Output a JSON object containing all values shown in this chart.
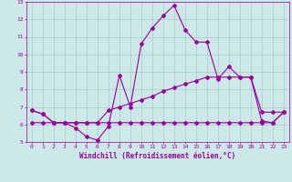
{
  "xlabel": "Windchill (Refroidissement éolien,°C)",
  "ylabel": "",
  "background_color": "#cce8e8",
  "line_color": "#990099",
  "grid_color": "#aacccc",
  "xlim": [
    -0.5,
    23.5
  ],
  "ylim": [
    5,
    13
  ],
  "xticks": [
    0,
    1,
    2,
    3,
    4,
    5,
    6,
    7,
    8,
    9,
    10,
    11,
    12,
    13,
    14,
    15,
    16,
    17,
    18,
    19,
    20,
    21,
    22,
    23
  ],
  "yticks": [
    5,
    6,
    7,
    8,
    9,
    10,
    11,
    12,
    13
  ],
  "line1_x": [
    0,
    1,
    2,
    3,
    4,
    5,
    6,
    7,
    8,
    9,
    10,
    11,
    12,
    13,
    14,
    15,
    16,
    17,
    18,
    19,
    20,
    21,
    22,
    23
  ],
  "line1_y": [
    6.8,
    6.6,
    6.1,
    6.1,
    5.8,
    5.3,
    5.1,
    5.9,
    8.8,
    7.0,
    10.6,
    11.5,
    12.2,
    12.8,
    11.4,
    10.7,
    10.7,
    8.6,
    9.3,
    8.7,
    8.7,
    6.2,
    6.1,
    6.7
  ],
  "line2_x": [
    0,
    1,
    2,
    3,
    4,
    5,
    6,
    7,
    8,
    9,
    10,
    11,
    12,
    13,
    14,
    15,
    16,
    17,
    18,
    19,
    20,
    21,
    22,
    23
  ],
  "line2_y": [
    6.8,
    6.6,
    6.1,
    6.1,
    6.1,
    6.1,
    6.1,
    6.8,
    7.0,
    7.2,
    7.4,
    7.6,
    7.9,
    8.1,
    8.3,
    8.5,
    8.7,
    8.7,
    8.7,
    8.7,
    8.7,
    6.7,
    6.7,
    6.7
  ],
  "line3_x": [
    0,
    1,
    2,
    3,
    4,
    5,
    6,
    7,
    8,
    9,
    10,
    11,
    12,
    13,
    14,
    15,
    16,
    17,
    18,
    19,
    20,
    21,
    22,
    23
  ],
  "line3_y": [
    6.1,
    6.1,
    6.1,
    6.1,
    6.1,
    6.1,
    6.1,
    6.1,
    6.1,
    6.1,
    6.1,
    6.1,
    6.1,
    6.1,
    6.1,
    6.1,
    6.1,
    6.1,
    6.1,
    6.1,
    6.1,
    6.1,
    6.1,
    6.7
  ],
  "marker": "D",
  "markersize": 2.0,
  "linewidth": 0.8,
  "tick_fontsize": 4.5,
  "label_fontsize": 5.5
}
